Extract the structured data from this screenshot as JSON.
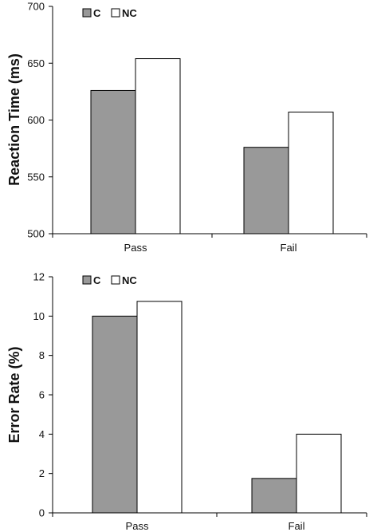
{
  "chart_data": [
    {
      "type": "bar",
      "ylabel": "Reaction Time (ms)",
      "categories": [
        "Pass",
        "Fail"
      ],
      "series": [
        {
          "name": "C",
          "values": [
            626,
            576
          ],
          "color": "#999999"
        },
        {
          "name": "NC",
          "values": [
            654,
            607
          ],
          "color": "#ffffff"
        }
      ],
      "ylim": [
        500,
        700
      ],
      "yticks": [
        500,
        550,
        600,
        650,
        700
      ],
      "grid": false,
      "legend": "top-left"
    },
    {
      "type": "bar",
      "ylabel": "Error Rate (%)",
      "categories": [
        "Pass",
        "Fail"
      ],
      "series": [
        {
          "name": "C",
          "values": [
            10,
            1.75
          ],
          "color": "#999999"
        },
        {
          "name": "NC",
          "values": [
            10.75,
            4
          ],
          "color": "#ffffff"
        }
      ],
      "ylim": [
        0,
        12
      ],
      "yticks": [
        0,
        2,
        4,
        6,
        8,
        10,
        12
      ],
      "grid": false,
      "legend": "top-left"
    }
  ]
}
